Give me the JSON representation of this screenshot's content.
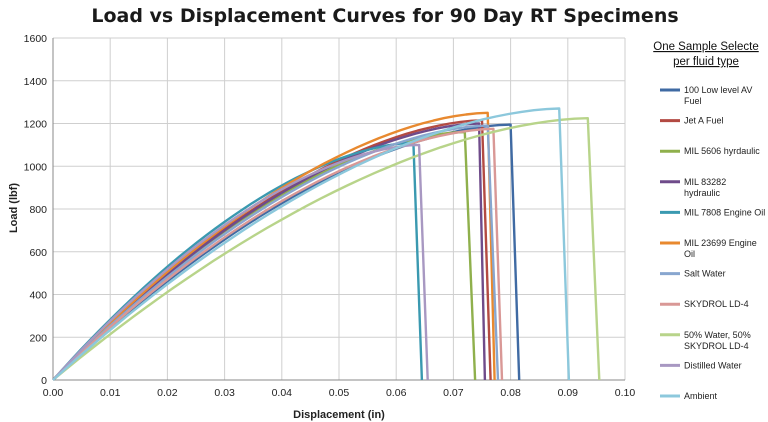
{
  "chart_data": {
    "type": "line",
    "title": "Load vs Displacement Curves for 90 Day RT Specimens",
    "xlabel": "Displacement (in)",
    "ylabel": "Load (lbf)",
    "xlim": [
      0,
      0.1
    ],
    "ylim": [
      0,
      1600
    ],
    "x_ticks": [
      "0.00",
      "0.01",
      "0.02",
      "0.03",
      "0.04",
      "0.05",
      "0.06",
      "0.07",
      "0.08",
      "0.09",
      "0.10"
    ],
    "y_ticks": [
      "0",
      "200",
      "400",
      "600",
      "800",
      "1000",
      "1200",
      "1400",
      "1600"
    ],
    "grid": true,
    "legend_title_lines": [
      "One Sample Selecte",
      "per fluid type"
    ],
    "legend_position": "right",
    "series": [
      {
        "name": "100 Low level AV Fuel",
        "color": "#3f6aa3",
        "peak": [
          0.08,
          1195
        ],
        "end": 0.0815
      },
      {
        "name": "Jet A Fuel",
        "color": "#b34a42",
        "peak": [
          0.075,
          1215
        ],
        "end": 0.0765
      },
      {
        "name": "MIL 5606 hyrdaulic",
        "color": "#8fb04c",
        "peak": [
          0.072,
          1160
        ],
        "end": 0.0738
      },
      {
        "name": "MIL 83282 hydraulic",
        "color": "#6f4b8a",
        "peak": [
          0.0745,
          1200
        ],
        "end": 0.0755
      },
      {
        "name": "MIL 7808 Engine Oil",
        "color": "#3a99b0",
        "peak": [
          0.063,
          1110
        ],
        "end": 0.0645
      },
      {
        "name": "MIL 23699 Engine Oil",
        "color": "#e8892f",
        "peak": [
          0.076,
          1250
        ],
        "end": 0.0772
      },
      {
        "name": "Salt Water",
        "color": "#88a6cf",
        "peak": [
          0.076,
          1190
        ],
        "end": 0.0778
      },
      {
        "name": "SKYDROL LD-4",
        "color": "#d99896",
        "peak": [
          0.077,
          1175
        ],
        "end": 0.0785
      },
      {
        "name": "50% Water, 50% SKYDROL LD-4",
        "color": "#b8d48a",
        "peak": [
          0.0935,
          1225
        ],
        "end": 0.0955
      },
      {
        "name": "Distilled Water",
        "color": "#a898c2",
        "peak": [
          0.064,
          1100
        ],
        "end": 0.0655
      },
      {
        "name": "Ambient",
        "color": "#8cc8dc",
        "peak": [
          0.0885,
          1270
        ],
        "end": 0.0902
      }
    ]
  },
  "legend_labels": [
    [
      "100 Low level AV",
      "Fuel"
    ],
    [
      "Jet A Fuel"
    ],
    [
      "MIL 5606 hyrdaulic"
    ],
    [
      "MIL 83282",
      "hydraulic"
    ],
    [
      "MIL 7808 Engine Oil"
    ],
    [
      "MIL 23699 Engine",
      "Oil"
    ],
    [
      "Salt Water"
    ],
    [
      "SKYDROL LD-4"
    ],
    [
      "50% Water, 50%",
      "SKYDROL LD-4"
    ],
    [
      "Distilled Water"
    ],
    [
      "Ambient"
    ]
  ]
}
